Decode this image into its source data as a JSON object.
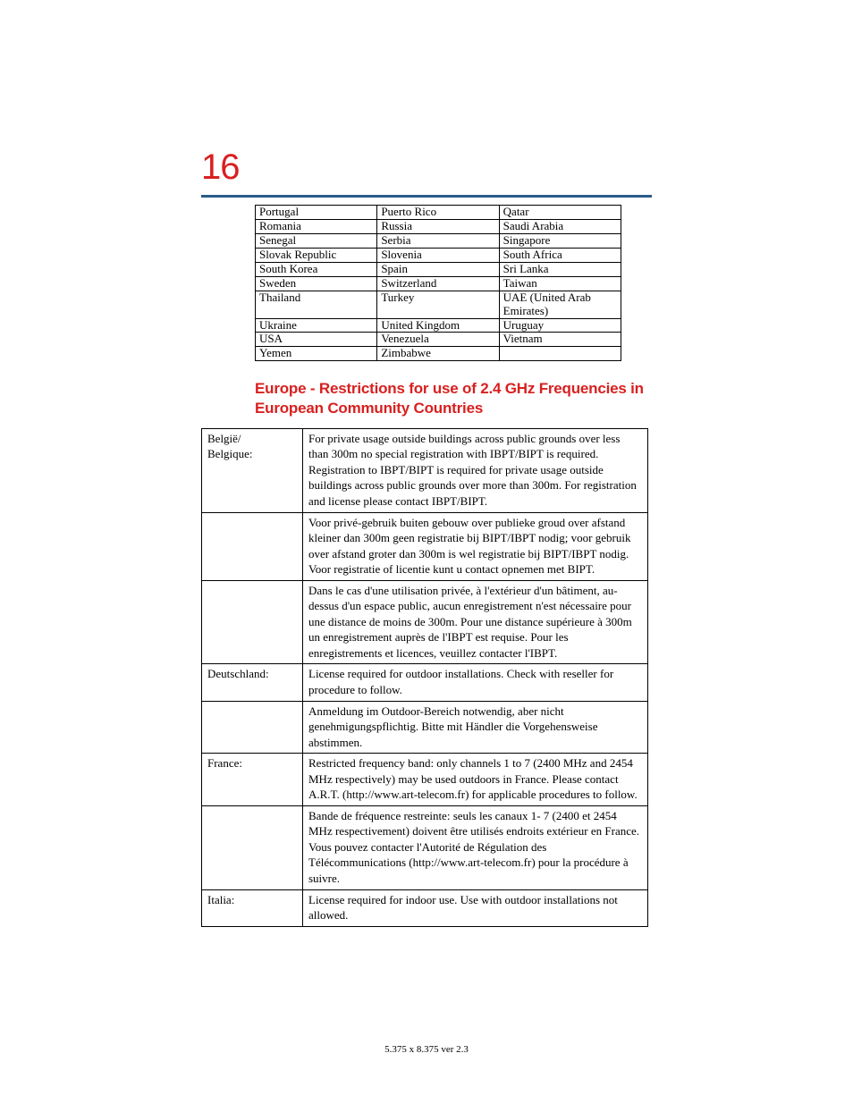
{
  "page_number": "16",
  "colors": {
    "accent_red": "#d8201f",
    "rule_blue": "#2a5a8a",
    "text": "#000000",
    "background": "#ffffff",
    "border": "#000000"
  },
  "countries_table": {
    "rows": [
      [
        "Portugal",
        "Puerto Rico",
        "Qatar"
      ],
      [
        "Romania",
        "Russia",
        "Saudi Arabia"
      ],
      [
        "Senegal",
        "Serbia",
        "Singapore"
      ],
      [
        "Slovak Republic",
        "Slovenia",
        "South Africa"
      ],
      [
        "South Korea",
        "Spain",
        "Sri Lanka"
      ],
      [
        "Sweden",
        "Switzerland",
        "Taiwan"
      ],
      [
        "Thailand",
        "Turkey",
        "UAE (United Arab Emirates)"
      ],
      [
        "Ukraine",
        "United Kingdom",
        "Uruguay"
      ],
      [
        "USA",
        "Venezuela",
        "Vietnam"
      ],
      [
        "Yemen",
        "Zimbabwe",
        ""
      ]
    ]
  },
  "section_heading": "Europe - Restrictions for use of 2.4 GHz Frequencies in European Community Countries",
  "restrictions_table": {
    "rows": [
      {
        "country": "België/\nBelgique:",
        "text": "For private usage outside buildings across public grounds over less than 300m no special registration with IBPT/BIPT is required. Registration to IBPT/BIPT is required for private usage outside buildings across public grounds over more than 300m. For registration and license please contact IBPT/BIPT."
      },
      {
        "country": "",
        "text": "Voor privé-gebruik buiten gebouw over publieke groud over afstand kleiner dan 300m geen registratie bij BIPT/IBPT nodig; voor gebruik over afstand groter dan 300m is wel registratie bij BIPT/IBPT nodig. Voor registratie of licentie kunt u contact opnemen met BIPT."
      },
      {
        "country": "",
        "text": "Dans le cas d'une utilisation privée, à l'extérieur d'un bâtiment, au-dessus d'un espace public, aucun enregistrement n'est nécessaire pour une distance de moins de 300m. Pour une distance supérieure à 300m un enregistrement auprès de l'IBPT est requise. Pour les enregistrements et licences, veuillez contacter l'IBPT."
      },
      {
        "country": "Deutschland:",
        "text": "License required for outdoor installations. Check with reseller for procedure to follow."
      },
      {
        "country": "",
        "text": "Anmeldung im Outdoor-Bereich notwendig, aber nicht genehmigungspflichtig. Bitte mit Händler die Vorgehensweise abstimmen."
      },
      {
        "country": "France:",
        "text": "Restricted frequency band: only channels 1 to 7 (2400 MHz and 2454 MHz respectively) may be used outdoors in France. Please contact A.R.T. (http://www.art-telecom.fr) for applicable procedures to follow."
      },
      {
        "country": "",
        "text": "Bande de fréquence restreinte: seuls les canaux 1- 7 (2400 et 2454 MHz respectivement) doivent être utilisés endroits extérieur en France. Vous pouvez contacter l'Autorité de Régulation des Télécommunications (http://www.art-telecom.fr) pour la procédure à suivre."
      },
      {
        "country": "Italia:",
        "text": "License required for indoor use. Use with outdoor installations not allowed."
      }
    ]
  },
  "footer_text": "5.375 x 8.375 ver 2.3"
}
